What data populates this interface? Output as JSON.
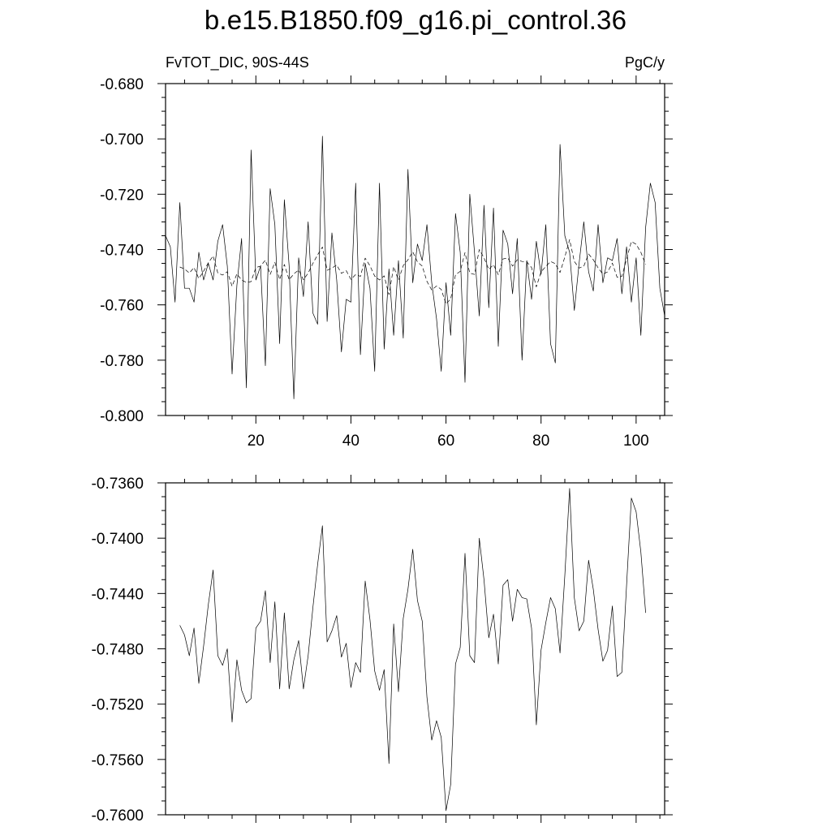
{
  "title": "b.e15.B1850.f09_g16.pi_control.36",
  "chart_data": [
    {
      "type": "line",
      "left_label": "FvTOT_DIC, 90S-44S",
      "right_label": "PgC/y",
      "xlim": [
        1,
        106
      ],
      "ylim": [
        -0.8,
        -0.68
      ],
      "x_ticks": [
        20,
        40,
        60,
        80,
        100
      ],
      "y_ticks": [
        "-0.680",
        "-0.700",
        "-0.720",
        "-0.740",
        "-0.760",
        "-0.780",
        "-0.800"
      ],
      "y_tick_values": [
        -0.68,
        -0.7,
        -0.72,
        -0.74,
        -0.76,
        -0.78,
        -0.8
      ],
      "grid": false,
      "series": [
        {
          "style": "solid",
          "x_start": 1,
          "values": [
            -0.735,
            -0.739,
            -0.759,
            -0.723,
            -0.754,
            -0.754,
            -0.759,
            -0.741,
            -0.751,
            -0.745,
            -0.751,
            -0.737,
            -0.731,
            -0.746,
            -0.785,
            -0.753,
            -0.736,
            -0.79,
            -0.704,
            -0.751,
            -0.746,
            -0.782,
            -0.718,
            -0.731,
            -0.774,
            -0.722,
            -0.746,
            -0.794,
            -0.743,
            -0.757,
            -0.73,
            -0.763,
            -0.767,
            -0.699,
            -0.766,
            -0.734,
            -0.751,
            -0.777,
            -0.758,
            -0.759,
            -0.716,
            -0.778,
            -0.745,
            -0.754,
            -0.784,
            -0.716,
            -0.776,
            -0.747,
            -0.771,
            -0.744,
            -0.772,
            -0.711,
            -0.752,
            -0.738,
            -0.744,
            -0.731,
            -0.752,
            -0.765,
            -0.784,
            -0.752,
            -0.771,
            -0.727,
            -0.741,
            -0.788,
            -0.72,
            -0.741,
            -0.764,
            -0.724,
            -0.761,
            -0.725,
            -0.775,
            -0.733,
            -0.738,
            -0.756,
            -0.736,
            -0.78,
            -0.744,
            -0.758,
            -0.737,
            -0.749,
            -0.731,
            -0.774,
            -0.781,
            -0.702,
            -0.735,
            -0.741,
            -0.762,
            -0.745,
            -0.73,
            -0.748,
            -0.755,
            -0.731,
            -0.752,
            -0.743,
            -0.744,
            -0.736,
            -0.756,
            -0.739,
            -0.759,
            -0.743,
            -0.771,
            -0.732,
            -0.716,
            -0.723,
            -0.754,
            -0.764
          ]
        },
        {
          "style": "dashed",
          "x_start": 4,
          "values": [
            -0.7463,
            -0.747,
            -0.7485,
            -0.7465,
            -0.7505,
            -0.7478,
            -0.7448,
            -0.7423,
            -0.7485,
            -0.7492,
            -0.748,
            -0.7533,
            -0.7488,
            -0.751,
            -0.7519,
            -0.7516,
            -0.7465,
            -0.746,
            -0.7438,
            -0.749,
            -0.7446,
            -0.7509,
            -0.7454,
            -0.7509,
            -0.7488,
            -0.7474,
            -0.7509,
            -0.7485,
            -0.745,
            -0.7419,
            -0.7391,
            -0.7475,
            -0.7467,
            -0.7456,
            -0.7486,
            -0.7476,
            -0.7508,
            -0.749,
            -0.7497,
            -0.7431,
            -0.7459,
            -0.7496,
            -0.751,
            -0.7495,
            -0.7563,
            -0.7462,
            -0.7511,
            -0.7458,
            -0.7437,
            -0.7408,
            -0.7445,
            -0.746,
            -0.7515,
            -0.7546,
            -0.7532,
            -0.7544,
            -0.7597,
            -0.7578,
            -0.7491,
            -0.7479,
            -0.7411,
            -0.7485,
            -0.749,
            -0.74,
            -0.743,
            -0.7472,
            -0.7455,
            -0.7491,
            -0.7434,
            -0.743,
            -0.746,
            -0.7437,
            -0.7443,
            -0.7444,
            -0.7465,
            -0.7535,
            -0.7481,
            -0.7461,
            -0.7443,
            -0.7451,
            -0.7483,
            -0.7427,
            -0.7364,
            -0.7443,
            -0.7467,
            -0.746,
            -0.7416,
            -0.7437,
            -0.7466,
            -0.7489,
            -0.7481,
            -0.7449,
            -0.75,
            -0.7497,
            -0.7434,
            -0.7371,
            -0.7381,
            -0.741,
            -0.7454
          ]
        }
      ]
    },
    {
      "type": "line",
      "xlim": [
        1,
        106
      ],
      "ylim": [
        -0.76,
        -0.736
      ],
      "y_ticks": [
        "-0.7360",
        "-0.7400",
        "-0.7440",
        "-0.7480",
        "-0.7520",
        "-0.7560",
        "-0.7600"
      ],
      "y_tick_values": [
        -0.736,
        -0.74,
        -0.744,
        -0.748,
        -0.752,
        -0.756,
        -0.76
      ],
      "grid": false,
      "series": [
        {
          "style": "solid",
          "x_start": 4,
          "values": [
            -0.7463,
            -0.747,
            -0.7485,
            -0.7465,
            -0.7505,
            -0.7478,
            -0.7448,
            -0.7423,
            -0.7485,
            -0.7492,
            -0.748,
            -0.7533,
            -0.7488,
            -0.751,
            -0.7519,
            -0.7516,
            -0.7465,
            -0.746,
            -0.7438,
            -0.749,
            -0.7446,
            -0.7509,
            -0.7454,
            -0.7509,
            -0.7488,
            -0.7474,
            -0.7509,
            -0.7485,
            -0.745,
            -0.7419,
            -0.7391,
            -0.7475,
            -0.7467,
            -0.7456,
            -0.7486,
            -0.7476,
            -0.7508,
            -0.749,
            -0.7497,
            -0.7431,
            -0.7459,
            -0.7496,
            -0.751,
            -0.7495,
            -0.7563,
            -0.7462,
            -0.7511,
            -0.7458,
            -0.7437,
            -0.7408,
            -0.7445,
            -0.746,
            -0.7515,
            -0.7546,
            -0.7532,
            -0.7544,
            -0.7597,
            -0.7578,
            -0.7491,
            -0.7479,
            -0.7411,
            -0.7485,
            -0.749,
            -0.74,
            -0.743,
            -0.7472,
            -0.7455,
            -0.7491,
            -0.7434,
            -0.743,
            -0.746,
            -0.7437,
            -0.7443,
            -0.7444,
            -0.7465,
            -0.7535,
            -0.7481,
            -0.7461,
            -0.7443,
            -0.7451,
            -0.7483,
            -0.7427,
            -0.7364,
            -0.7443,
            -0.7467,
            -0.746,
            -0.7416,
            -0.7437,
            -0.7466,
            -0.7489,
            -0.7481,
            -0.7449,
            -0.75,
            -0.7497,
            -0.7434,
            -0.7371,
            -0.7381,
            -0.741,
            -0.7454
          ]
        }
      ]
    }
  ]
}
